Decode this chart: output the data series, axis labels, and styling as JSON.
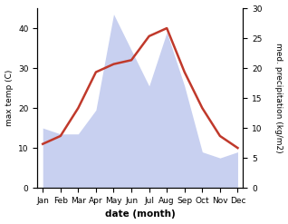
{
  "months": [
    "Jan",
    "Feb",
    "Mar",
    "Apr",
    "May",
    "Jun",
    "Jul",
    "Aug",
    "Sep",
    "Oct",
    "Nov",
    "Dec"
  ],
  "temperature": [
    11,
    13,
    20,
    29,
    31,
    32,
    38,
    40,
    29,
    20,
    13,
    10
  ],
  "precipitation": [
    10,
    9,
    9,
    13,
    29,
    23,
    17,
    26,
    17,
    6,
    5,
    6
  ],
  "temp_color": "#c0392b",
  "precip_color": "#c8d0f0",
  "xlabel": "date (month)",
  "ylabel_left": "max temp (C)",
  "ylabel_right": "med. precipitation (kg/m2)",
  "ylim_left": [
    0,
    45
  ],
  "ylim_right": [
    0,
    30
  ],
  "yticks_left": [
    0,
    10,
    20,
    30,
    40
  ],
  "yticks_right": [
    0,
    5,
    10,
    15,
    20,
    25,
    30
  ],
  "bg_color": "#ffffff",
  "fig_bg": "#ffffff"
}
